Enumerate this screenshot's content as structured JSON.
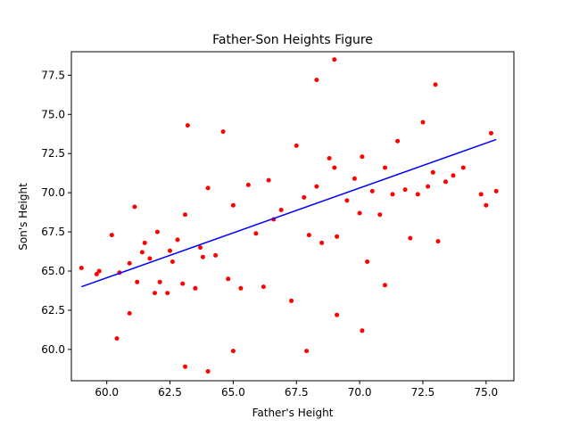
{
  "chart_data": {
    "type": "scatter",
    "title": "Father-Son Heights Figure",
    "xlabel": "Father's Height",
    "ylabel": "Son's Height",
    "xlim": [
      58.6,
      76.1
    ],
    "ylim": [
      58.0,
      79.0
    ],
    "xticks": [
      60.0,
      62.5,
      65.0,
      67.5,
      70.0,
      72.5,
      75.0
    ],
    "yticks": [
      60.0,
      62.5,
      65.0,
      67.5,
      70.0,
      72.5,
      75.0,
      77.5
    ],
    "xtick_labels": [
      "60.0",
      "62.5",
      "65.0",
      "67.5",
      "70.0",
      "72.5",
      "75.0"
    ],
    "ytick_labels": [
      "60.0",
      "62.5",
      "65.0",
      "67.5",
      "70.0",
      "72.5",
      "75.0",
      "77.5"
    ],
    "grid": false,
    "colors": {
      "points": "#ff0000",
      "fit_line": "#0000ff",
      "axes": "#000000"
    },
    "series": [
      {
        "kind": "points",
        "x": [
          59.0,
          59.6,
          59.7,
          60.2,
          60.4,
          60.5,
          60.9,
          60.9,
          61.1,
          61.2,
          61.4,
          61.5,
          61.7,
          61.9,
          62.0,
          62.1,
          62.4,
          62.5,
          62.6,
          62.8,
          63.0,
          63.1,
          63.2,
          63.5,
          63.7,
          63.8,
          64.0,
          64.3,
          64.6,
          64.8,
          65.0,
          65.3,
          65.6,
          65.9,
          66.2,
          66.4,
          66.6,
          66.9,
          67.3,
          67.5,
          67.8,
          68.0,
          68.3,
          68.5,
          68.8,
          69.0,
          69.1,
          69.5,
          69.8,
          70.0,
          70.1,
          70.3,
          70.5,
          70.8,
          71.0,
          71.3,
          71.5,
          71.8,
          72.0,
          72.3,
          72.5,
          72.7,
          72.9,
          73.1,
          73.4,
          73.7,
          74.1,
          74.8,
          75.0,
          75.2,
          75.4,
          63.1,
          64.0,
          65.0,
          68.3,
          69.0,
          69.1,
          71.0,
          73.0,
          67.9,
          70.1
        ],
        "y": [
          65.2,
          64.8,
          65.0,
          67.3,
          60.7,
          64.9,
          65.5,
          62.3,
          69.1,
          64.3,
          66.2,
          66.8,
          65.8,
          63.6,
          67.5,
          64.3,
          63.6,
          66.3,
          65.6,
          67.0,
          64.2,
          68.6,
          74.3,
          63.9,
          66.5,
          65.9,
          70.3,
          66.0,
          73.9,
          64.5,
          69.2,
          63.9,
          70.5,
          67.4,
          64.0,
          70.8,
          68.3,
          68.9,
          63.1,
          73.0,
          69.7,
          67.3,
          70.4,
          66.8,
          72.2,
          71.6,
          67.2,
          69.5,
          70.9,
          68.7,
          72.3,
          65.6,
          70.1,
          68.6,
          71.6,
          69.9,
          73.3,
          70.2,
          67.1,
          69.9,
          74.5,
          70.4,
          71.3,
          66.9,
          70.7,
          71.1,
          71.6,
          69.9,
          69.2,
          73.8,
          70.1,
          58.9,
          58.6,
          59.9,
          77.2,
          78.5,
          62.2,
          64.1,
          76.9,
          59.9,
          61.2
        ]
      },
      {
        "kind": "fit_line",
        "x": [
          59.0,
          75.4
        ],
        "y": [
          64.0,
          73.4
        ]
      }
    ]
  }
}
